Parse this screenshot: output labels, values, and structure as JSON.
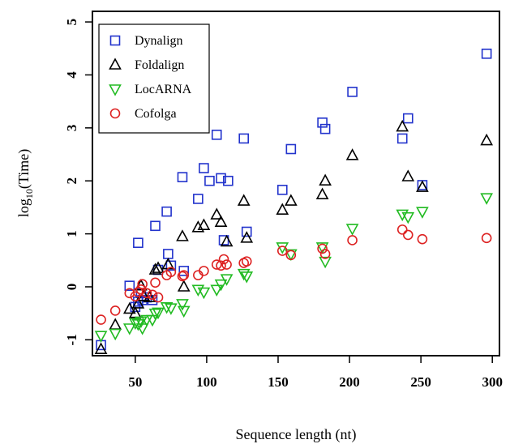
{
  "chart_data": {
    "type": "scatter",
    "title": "",
    "xlabel": "Sequence length (nt)",
    "ylabel_main": "log",
    "ylabel_sub": "10",
    "ylabel_rest": "(Time)",
    "xlim": [
      20,
      305
    ],
    "ylim": [
      -1.3,
      5.2
    ],
    "xticks": [
      50,
      100,
      150,
      200,
      250,
      300
    ],
    "yticks": [
      -1,
      0,
      1,
      2,
      3,
      4,
      5
    ],
    "legend_position": "top-left",
    "grid": false,
    "series": [
      {
        "name": "Dynalign",
        "marker": "square",
        "color": "#2233cc",
        "points": [
          [
            26,
            -1.1
          ],
          [
            46,
            0.02
          ],
          [
            50,
            -0.38
          ],
          [
            52,
            0.83
          ],
          [
            52,
            -0.28
          ],
          [
            54,
            -0.12
          ],
          [
            55,
            -0.25
          ],
          [
            58,
            -0.2
          ],
          [
            62,
            -0.25
          ],
          [
            64,
            1.15
          ],
          [
            66,
            0.32
          ],
          [
            72,
            1.42
          ],
          [
            73,
            0.62
          ],
          [
            75,
            0.4
          ],
          [
            83,
            2.07
          ],
          [
            84,
            0.3
          ],
          [
            94,
            1.66
          ],
          [
            98,
            2.24
          ],
          [
            102,
            2.0
          ],
          [
            107,
            2.87
          ],
          [
            110,
            2.05
          ],
          [
            112,
            0.88
          ],
          [
            115,
            2.0
          ],
          [
            126,
            2.8
          ],
          [
            128,
            1.04
          ],
          [
            153,
            1.83
          ],
          [
            159,
            2.6
          ],
          [
            181,
            3.1
          ],
          [
            183,
            2.98
          ],
          [
            202,
            3.68
          ],
          [
            237,
            2.8
          ],
          [
            241,
            3.18
          ],
          [
            251,
            1.92
          ],
          [
            296,
            4.4
          ]
        ]
      },
      {
        "name": "Foldalign",
        "marker": "triangle-up",
        "color": "#000000",
        "points": [
          [
            26,
            -1.18
          ],
          [
            36,
            -0.72
          ],
          [
            46,
            -0.42
          ],
          [
            50,
            -0.5
          ],
          [
            52,
            -0.32
          ],
          [
            54,
            0.02
          ],
          [
            56,
            -0.18
          ],
          [
            60,
            -0.2
          ],
          [
            64,
            0.32
          ],
          [
            66,
            0.35
          ],
          [
            73,
            0.42
          ],
          [
            83,
            0.95
          ],
          [
            84,
            0.0
          ],
          [
            94,
            1.12
          ],
          [
            98,
            1.16
          ],
          [
            107,
            1.36
          ],
          [
            110,
            1.22
          ],
          [
            114,
            0.85
          ],
          [
            126,
            1.62
          ],
          [
            128,
            0.92
          ],
          [
            153,
            1.45
          ],
          [
            159,
            1.62
          ],
          [
            181,
            1.74
          ],
          [
            183,
            2.0
          ],
          [
            202,
            2.48
          ],
          [
            237,
            3.02
          ],
          [
            241,
            2.08
          ],
          [
            251,
            1.88
          ],
          [
            296,
            2.76
          ]
        ]
      },
      {
        "name": "LocARNA",
        "marker": "triangle-down",
        "color": "#22bb22",
        "points": [
          [
            26,
            -0.92
          ],
          [
            36,
            -0.88
          ],
          [
            46,
            -0.78
          ],
          [
            50,
            -0.68
          ],
          [
            52,
            -0.7
          ],
          [
            54,
            -0.65
          ],
          [
            55,
            -0.78
          ],
          [
            58,
            -0.62
          ],
          [
            62,
            -0.62
          ],
          [
            64,
            -0.5
          ],
          [
            66,
            -0.48
          ],
          [
            72,
            -0.38
          ],
          [
            75,
            -0.4
          ],
          [
            83,
            -0.32
          ],
          [
            84,
            -0.45
          ],
          [
            94,
            -0.05
          ],
          [
            98,
            -0.1
          ],
          [
            107,
            -0.05
          ],
          [
            110,
            0.05
          ],
          [
            114,
            0.15
          ],
          [
            126,
            0.25
          ],
          [
            128,
            0.2
          ],
          [
            153,
            0.75
          ],
          [
            159,
            0.62
          ],
          [
            181,
            0.75
          ],
          [
            183,
            0.48
          ],
          [
            202,
            1.1
          ],
          [
            237,
            1.37
          ],
          [
            241,
            1.32
          ],
          [
            251,
            1.42
          ],
          [
            296,
            1.68
          ]
        ]
      },
      {
        "name": "Cofolga",
        "marker": "circle",
        "color": "#dd2222",
        "points": [
          [
            26,
            -0.62
          ],
          [
            36,
            -0.45
          ],
          [
            46,
            -0.12
          ],
          [
            50,
            -0.18
          ],
          [
            52,
            -0.1
          ],
          [
            54,
            -0.05
          ],
          [
            55,
            0.05
          ],
          [
            58,
            -0.12
          ],
          [
            62,
            -0.15
          ],
          [
            64,
            0.08
          ],
          [
            66,
            -0.2
          ],
          [
            72,
            0.22
          ],
          [
            75,
            0.28
          ],
          [
            83,
            0.2
          ],
          [
            84,
            0.22
          ],
          [
            94,
            0.22
          ],
          [
            98,
            0.3
          ],
          [
            107,
            0.42
          ],
          [
            110,
            0.4
          ],
          [
            112,
            0.52
          ],
          [
            114,
            0.42
          ],
          [
            126,
            0.45
          ],
          [
            128,
            0.48
          ],
          [
            153,
            0.68
          ],
          [
            159,
            0.6
          ],
          [
            181,
            0.72
          ],
          [
            183,
            0.62
          ],
          [
            202,
            0.88
          ],
          [
            237,
            1.08
          ],
          [
            241,
            0.98
          ],
          [
            251,
            0.9
          ],
          [
            296,
            0.92
          ]
        ]
      }
    ]
  }
}
